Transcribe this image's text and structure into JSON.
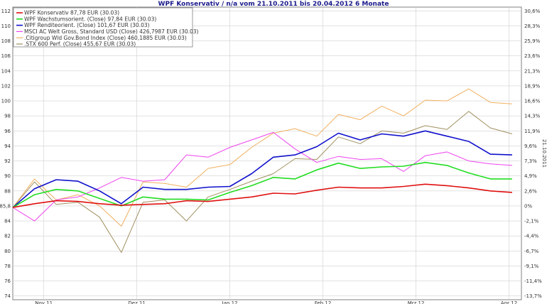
{
  "chart_data": {
    "type": "line",
    "title": "WPF Konservativ / n/a vom 21.10.2011 bis 20.04.2012 6 Monate",
    "right_axis_label": "21.10.2011",
    "grid": true,
    "legend_position": "top-left",
    "ylim": [
      73.5,
      112.5
    ],
    "y_ticks": [
      74,
      76,
      78,
      80,
      82,
      84,
      86,
      88,
      90,
      92,
      94,
      96,
      98,
      100,
      102,
      104,
      106,
      108,
      110,
      112
    ],
    "y_tick_labels": [
      "74",
      "76",
      "78",
      "80",
      "82",
      "84",
      "85,8",
      "88",
      "90",
      "92",
      "94",
      "96",
      "98",
      "100",
      "102",
      "104",
      "106",
      "108",
      "110",
      "112"
    ],
    "base_value": 85.8,
    "right_ticks": [
      "-13,7%",
      "-11,4%",
      "-9,1%",
      "-6,7%",
      "-4,4%",
      "-2,1%",
      "0%",
      "2,6%",
      "4,9%",
      "7,3%",
      "9,6%",
      "11,9%",
      "14,3%",
      "16,6%",
      "18,9%",
      "21,3%",
      "23,6%",
      "25,9%",
      "28,3%",
      "30,6%"
    ],
    "x_tick_labels": [
      "Nov 11",
      "Dez 11",
      "Jan 12",
      "Feb 12",
      "Mrz 12",
      "Apr 12"
    ],
    "x_tick_positions": [
      10,
      40,
      70,
      100,
      130,
      160
    ],
    "xlim": [
      0,
      164
    ],
    "x": [
      0,
      7,
      14,
      21,
      28,
      35,
      42,
      49,
      56,
      63,
      70,
      77,
      84,
      91,
      98,
      105,
      112,
      119,
      126,
      133,
      140,
      147,
      154,
      161
    ],
    "series": [
      {
        "name": "WPF Konservativ 87,78 EUR (30.03)",
        "color": "#e01010",
        "width": 1.6,
        "values": [
          85.8,
          86.3,
          86.7,
          86.6,
          86.3,
          86.1,
          86.2,
          86.3,
          86.7,
          86.6,
          86.9,
          87.2,
          87.7,
          87.6,
          88.1,
          88.5,
          88.4,
          88.4,
          88.6,
          88.9,
          88.7,
          88.4,
          88.0,
          87.8
        ]
      },
      {
        "name": "WPF Wachstumsorient. (Close) 97,84 EUR (30.03)",
        "color": "#22dd22",
        "width": 1.6,
        "values": [
          85.8,
          87.5,
          88.2,
          88.0,
          87.0,
          86.0,
          87.2,
          86.9,
          86.9,
          86.8,
          87.8,
          88.7,
          89.8,
          89.6,
          90.8,
          91.7,
          91.0,
          91.2,
          91.3,
          91.8,
          91.4,
          90.4,
          89.6,
          89.6
        ]
      },
      {
        "name": "WPF Renditeorient. (Close) 101,67 EUR (30.03)",
        "color": "#1010cc",
        "width": 1.6,
        "values": [
          85.8,
          88.3,
          89.5,
          89.3,
          88.0,
          86.3,
          88.5,
          88.2,
          88.2,
          88.5,
          88.6,
          90.3,
          92.5,
          92.8,
          93.9,
          95.7,
          94.8,
          95.6,
          95.3,
          96.0,
          95.3,
          94.6,
          92.9,
          92.8
        ]
      },
      {
        "name": "MSCI AC Welt Gross, Standard USD (Close) 426,7987 EUR (30.03)",
        "color": "#ee44ee",
        "width": 1.0,
        "values": [
          85.8,
          84.0,
          86.8,
          87.2,
          88.4,
          89.8,
          89.3,
          89.5,
          92.8,
          92.5,
          93.8,
          94.8,
          95.8,
          93.6,
          91.8,
          92.6,
          92.2,
          92.3,
          90.6,
          92.7,
          93.2,
          92.0,
          91.6,
          91.4
        ]
      },
      {
        "name": ".Citigroup Wld Gov.Bond Index (Close) 460,1885 EUR (30.03)",
        "color": "#f0b060",
        "width": 1.0,
        "values": [
          85.8,
          89.6,
          86.8,
          87.5,
          86.0,
          83.3,
          89.2,
          89.0,
          88.5,
          91.0,
          91.5,
          93.8,
          95.7,
          96.3,
          95.3,
          98.2,
          97.5,
          99.3,
          98.0,
          100.1,
          100.0,
          101.6,
          99.8,
          99.6
        ]
      },
      {
        "name": ".STX 600 Perf. (Close) 455,67 EUR (30.03)",
        "color": "#a09060",
        "width": 1.0,
        "values": [
          85.8,
          89.2,
          86.2,
          86.5,
          84.5,
          79.8,
          86.5,
          86.8,
          84.0,
          87.2,
          88.2,
          89.3,
          90.3,
          92.3,
          92.2,
          95.2,
          94.3,
          96.0,
          95.7,
          96.7,
          96.2,
          98.6,
          96.4,
          95.6
        ]
      }
    ]
  }
}
